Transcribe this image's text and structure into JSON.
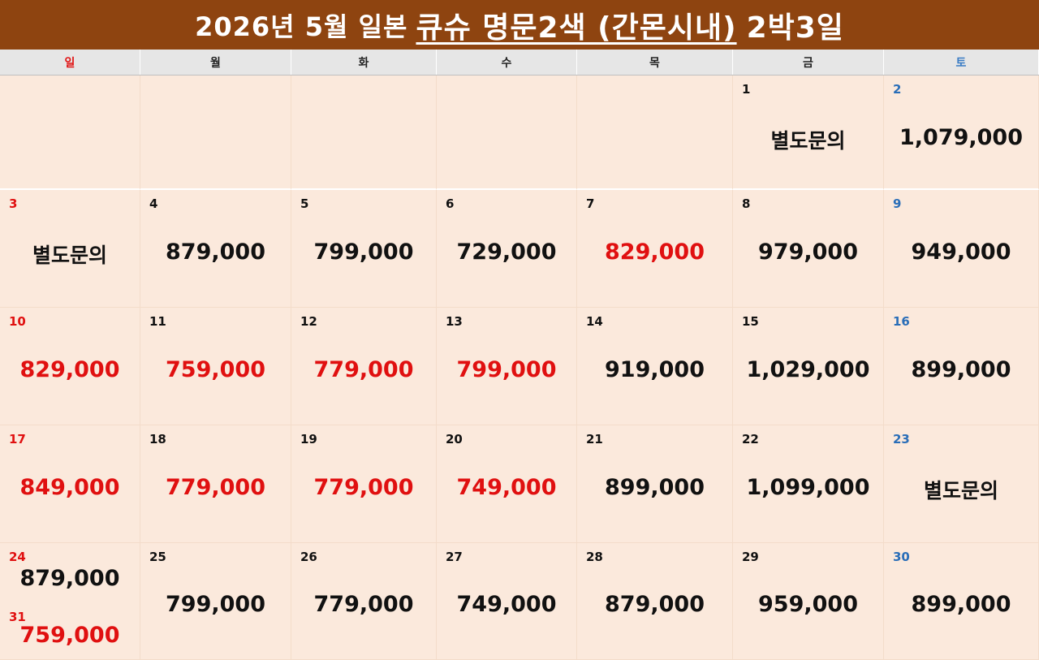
{
  "title": {
    "prefix": "2026년 5월 일본",
    "highlight": "큐슈 명문2색 (간몬시내)",
    "suffix": "2박3일"
  },
  "weekdays": [
    "일",
    "월",
    "화",
    "수",
    "목",
    "금",
    "토"
  ],
  "colors": {
    "header_bg": "#8e4410",
    "cell_bg": "#fbe9dc",
    "sunday": "#e01010",
    "saturday": "#2a6eb8",
    "price_red": "#e01010"
  },
  "weeks": [
    [
      {
        "day": "",
        "price": ""
      },
      {
        "day": "",
        "price": ""
      },
      {
        "day": "",
        "price": ""
      },
      {
        "day": "",
        "price": ""
      },
      {
        "day": "",
        "price": ""
      },
      {
        "day": "1",
        "price": "별도문의",
        "red": false
      },
      {
        "day": "2",
        "price": "1,079,000",
        "red": false
      }
    ],
    [
      {
        "day": "3",
        "price": "별도문의",
        "red": false
      },
      {
        "day": "4",
        "price": "879,000",
        "red": false
      },
      {
        "day": "5",
        "price": "799,000",
        "red": false
      },
      {
        "day": "6",
        "price": "729,000",
        "red": false
      },
      {
        "day": "7",
        "price": "829,000",
        "red": true
      },
      {
        "day": "8",
        "price": "979,000",
        "red": false
      },
      {
        "day": "9",
        "price": "949,000",
        "red": false
      }
    ],
    [
      {
        "day": "10",
        "price": "829,000",
        "red": true
      },
      {
        "day": "11",
        "price": "759,000",
        "red": true
      },
      {
        "day": "12",
        "price": "779,000",
        "red": true
      },
      {
        "day": "13",
        "price": "799,000",
        "red": true
      },
      {
        "day": "14",
        "price": "919,000",
        "red": false
      },
      {
        "day": "15",
        "price": "1,029,000",
        "red": false
      },
      {
        "day": "16",
        "price": "899,000",
        "red": false
      }
    ],
    [
      {
        "day": "17",
        "price": "849,000",
        "red": true
      },
      {
        "day": "18",
        "price": "779,000",
        "red": true
      },
      {
        "day": "19",
        "price": "779,000",
        "red": true
      },
      {
        "day": "20",
        "price": "749,000",
        "red": true
      },
      {
        "day": "21",
        "price": "899,000",
        "red": false
      },
      {
        "day": "22",
        "price": "1,099,000",
        "red": false
      },
      {
        "day": "23",
        "price": "별도문의",
        "red": false
      }
    ],
    [
      {
        "day": "24",
        "price": "879,000",
        "red": false,
        "extra_day": "31",
        "extra_price": "759,000",
        "extra_red": true
      },
      {
        "day": "25",
        "price": "799,000",
        "red": false
      },
      {
        "day": "26",
        "price": "779,000",
        "red": false
      },
      {
        "day": "27",
        "price": "749,000",
        "red": false
      },
      {
        "day": "28",
        "price": "879,000",
        "red": false
      },
      {
        "day": "29",
        "price": "959,000",
        "red": false
      },
      {
        "day": "30",
        "price": "899,000",
        "red": false
      }
    ]
  ]
}
